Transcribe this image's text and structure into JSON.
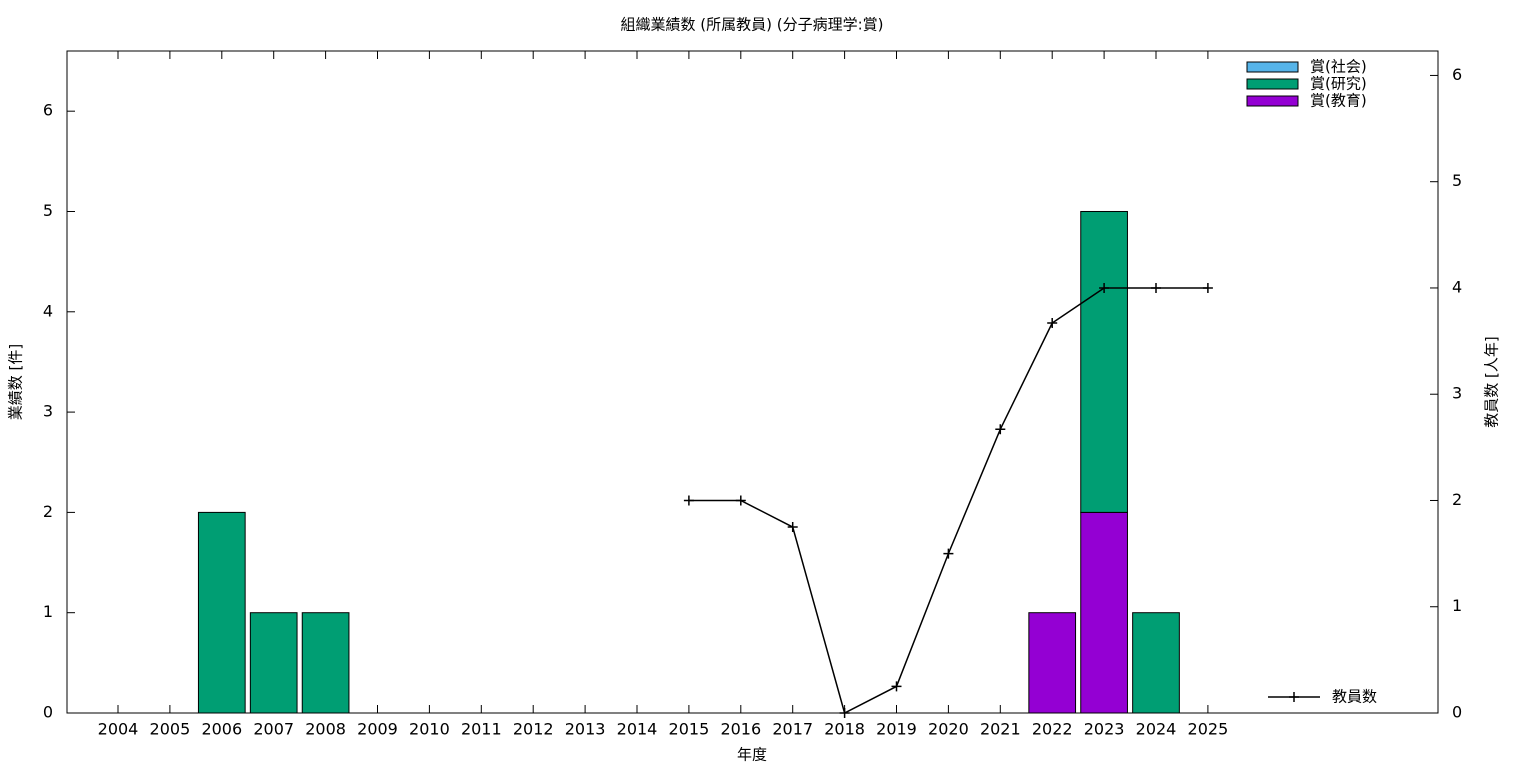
{
  "chart_data": {
    "type": "bar",
    "stacked": true,
    "title": "組織業績数 (所属教員) (分子病理学:賞)",
    "x_label": "年度",
    "y_label": "業績数 [件]",
    "y2_label": "教員数 [人年]",
    "categories": [
      "2004",
      "2005",
      "2006",
      "2007",
      "2008",
      "2009",
      "2010",
      "2011",
      "2012",
      "2013",
      "2014",
      "2015",
      "2016",
      "2017",
      "2018",
      "2019",
      "2020",
      "2021",
      "2022",
      "2023",
      "2024",
      "2025"
    ],
    "series": [
      {
        "name": "賞(社会)",
        "type": "bar",
        "color": "#56b4e9",
        "values": [
          0,
          0,
          0,
          0,
          0,
          0,
          0,
          0,
          0,
          0,
          0,
          0,
          0,
          0,
          0,
          0,
          0,
          0,
          0,
          0,
          0,
          0
        ]
      },
      {
        "name": "賞(研究)",
        "type": "bar",
        "color": "#009e73",
        "values": [
          0,
          0,
          2,
          1,
          1,
          0,
          0,
          0,
          0,
          0,
          0,
          0,
          0,
          0,
          0,
          0,
          0,
          0,
          0,
          3,
          1,
          0
        ]
      },
      {
        "name": "賞(教育)",
        "type": "bar",
        "color": "#9400d3",
        "values": [
          0,
          0,
          0,
          0,
          0,
          0,
          0,
          0,
          0,
          0,
          0,
          0,
          0,
          0,
          0,
          0,
          0,
          0,
          1,
          2,
          0,
          0
        ]
      },
      {
        "name": "教員数",
        "type": "line",
        "axis": "y2",
        "color": "#000000",
        "values": [
          null,
          null,
          null,
          null,
          null,
          null,
          null,
          null,
          null,
          null,
          null,
          2,
          2,
          1.75,
          0,
          0.25,
          1.5,
          2.67,
          3.67,
          4,
          4,
          4
        ]
      }
    ],
    "ylim": [
      0,
      6.6
    ],
    "yticks": [
      0,
      1,
      2,
      3,
      4,
      5,
      6
    ],
    "y2lim": [
      0,
      6.23
    ],
    "y2ticks": [
      0,
      1,
      2,
      3,
      4,
      5,
      6
    ]
  }
}
